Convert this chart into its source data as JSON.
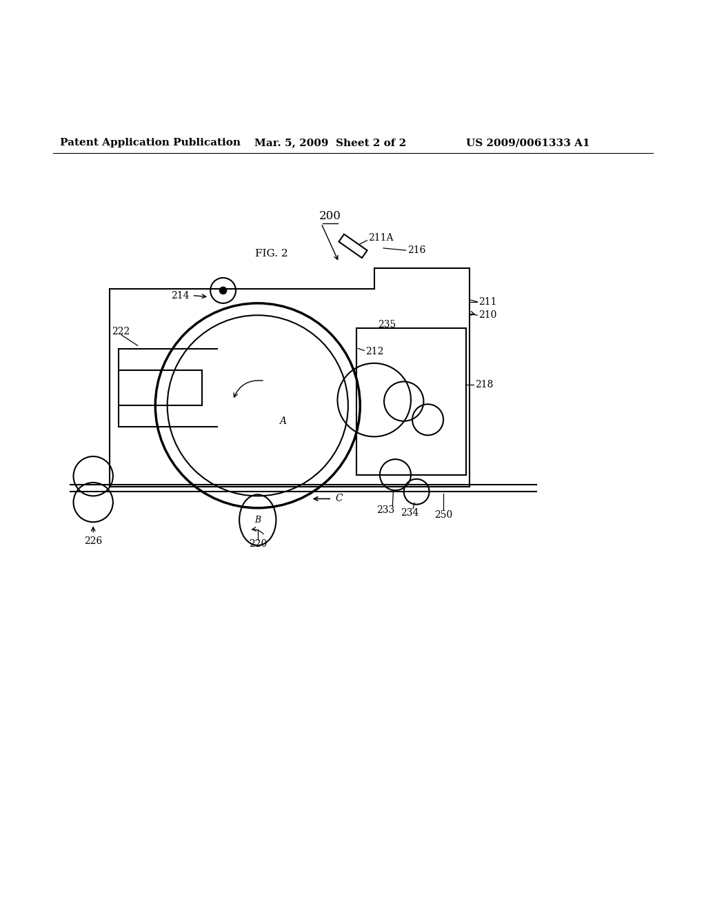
{
  "bg_color": "#ffffff",
  "header_left": "Patent Application Publication",
  "header_mid": "Mar. 5, 2009  Sheet 2 of 2",
  "header_right": "US 2009/0061333 A1",
  "fig_label": "FIG. 2"
}
